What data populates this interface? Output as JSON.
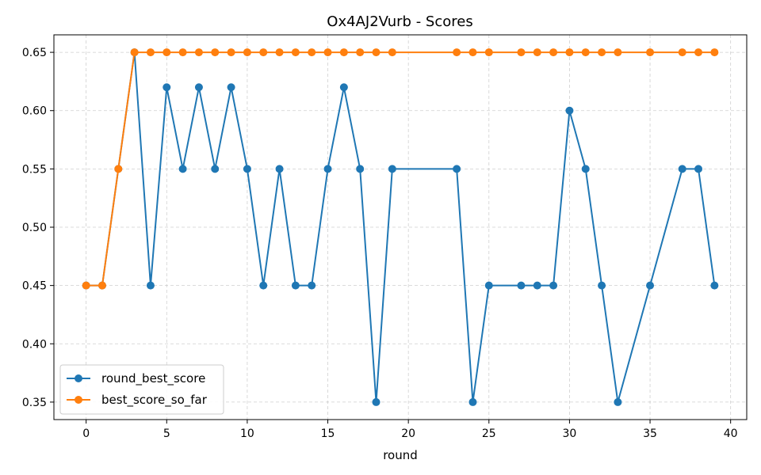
{
  "chart_data": {
    "type": "line",
    "title": "Ox4AJ2Vurb - Scores",
    "xlabel": "round",
    "ylabel": "",
    "xlim": [
      -2,
      41
    ],
    "ylim": [
      0.335,
      0.665
    ],
    "xticks": [
      0,
      5,
      10,
      15,
      20,
      25,
      30,
      35,
      40
    ],
    "yticks": [
      0.35,
      0.4,
      0.45,
      0.5,
      0.55,
      0.6,
      0.65
    ],
    "grid": true,
    "legend_position": "bottom-left",
    "series": [
      {
        "name": "round_best_score",
        "color": "#1f77b4",
        "points": [
          [
            0,
            0.45
          ],
          [
            1,
            0.45
          ],
          [
            2,
            0.55
          ],
          [
            3,
            0.65
          ],
          [
            4,
            0.45
          ],
          [
            5,
            0.62
          ],
          [
            6,
            0.55
          ],
          [
            7,
            0.62
          ],
          [
            8,
            0.55
          ],
          [
            9,
            0.62
          ],
          [
            10,
            0.55
          ],
          [
            11,
            0.45
          ],
          [
            12,
            0.55
          ],
          [
            13,
            0.45
          ],
          [
            14,
            0.45
          ],
          [
            15,
            0.55
          ],
          [
            16,
            0.62
          ],
          [
            17,
            0.55
          ],
          [
            18,
            0.35
          ],
          [
            19,
            0.55
          ],
          [
            23,
            0.55
          ],
          [
            24,
            0.35
          ],
          [
            25,
            0.45
          ],
          [
            27,
            0.45
          ],
          [
            28,
            0.45
          ],
          [
            29,
            0.45
          ],
          [
            30,
            0.6
          ],
          [
            31,
            0.55
          ],
          [
            32,
            0.45
          ],
          [
            33,
            0.35
          ],
          [
            35,
            0.45
          ],
          [
            37,
            0.55
          ],
          [
            38,
            0.55
          ],
          [
            39,
            0.45
          ]
        ]
      },
      {
        "name": "best_score_so_far",
        "color": "#ff7f0e",
        "points": [
          [
            0,
            0.45
          ],
          [
            1,
            0.45
          ],
          [
            2,
            0.55
          ],
          [
            3,
            0.65
          ],
          [
            4,
            0.65
          ],
          [
            5,
            0.65
          ],
          [
            6,
            0.65
          ],
          [
            7,
            0.65
          ],
          [
            8,
            0.65
          ],
          [
            9,
            0.65
          ],
          [
            10,
            0.65
          ],
          [
            11,
            0.65
          ],
          [
            12,
            0.65
          ],
          [
            13,
            0.65
          ],
          [
            14,
            0.65
          ],
          [
            15,
            0.65
          ],
          [
            16,
            0.65
          ],
          [
            17,
            0.65
          ],
          [
            18,
            0.65
          ],
          [
            19,
            0.65
          ],
          [
            23,
            0.65
          ],
          [
            24,
            0.65
          ],
          [
            25,
            0.65
          ],
          [
            27,
            0.65
          ],
          [
            28,
            0.65
          ],
          [
            29,
            0.65
          ],
          [
            30,
            0.65
          ],
          [
            31,
            0.65
          ],
          [
            32,
            0.65
          ],
          [
            33,
            0.65
          ],
          [
            35,
            0.65
          ],
          [
            37,
            0.65
          ],
          [
            38,
            0.65
          ],
          [
            39,
            0.65
          ]
        ]
      }
    ]
  }
}
